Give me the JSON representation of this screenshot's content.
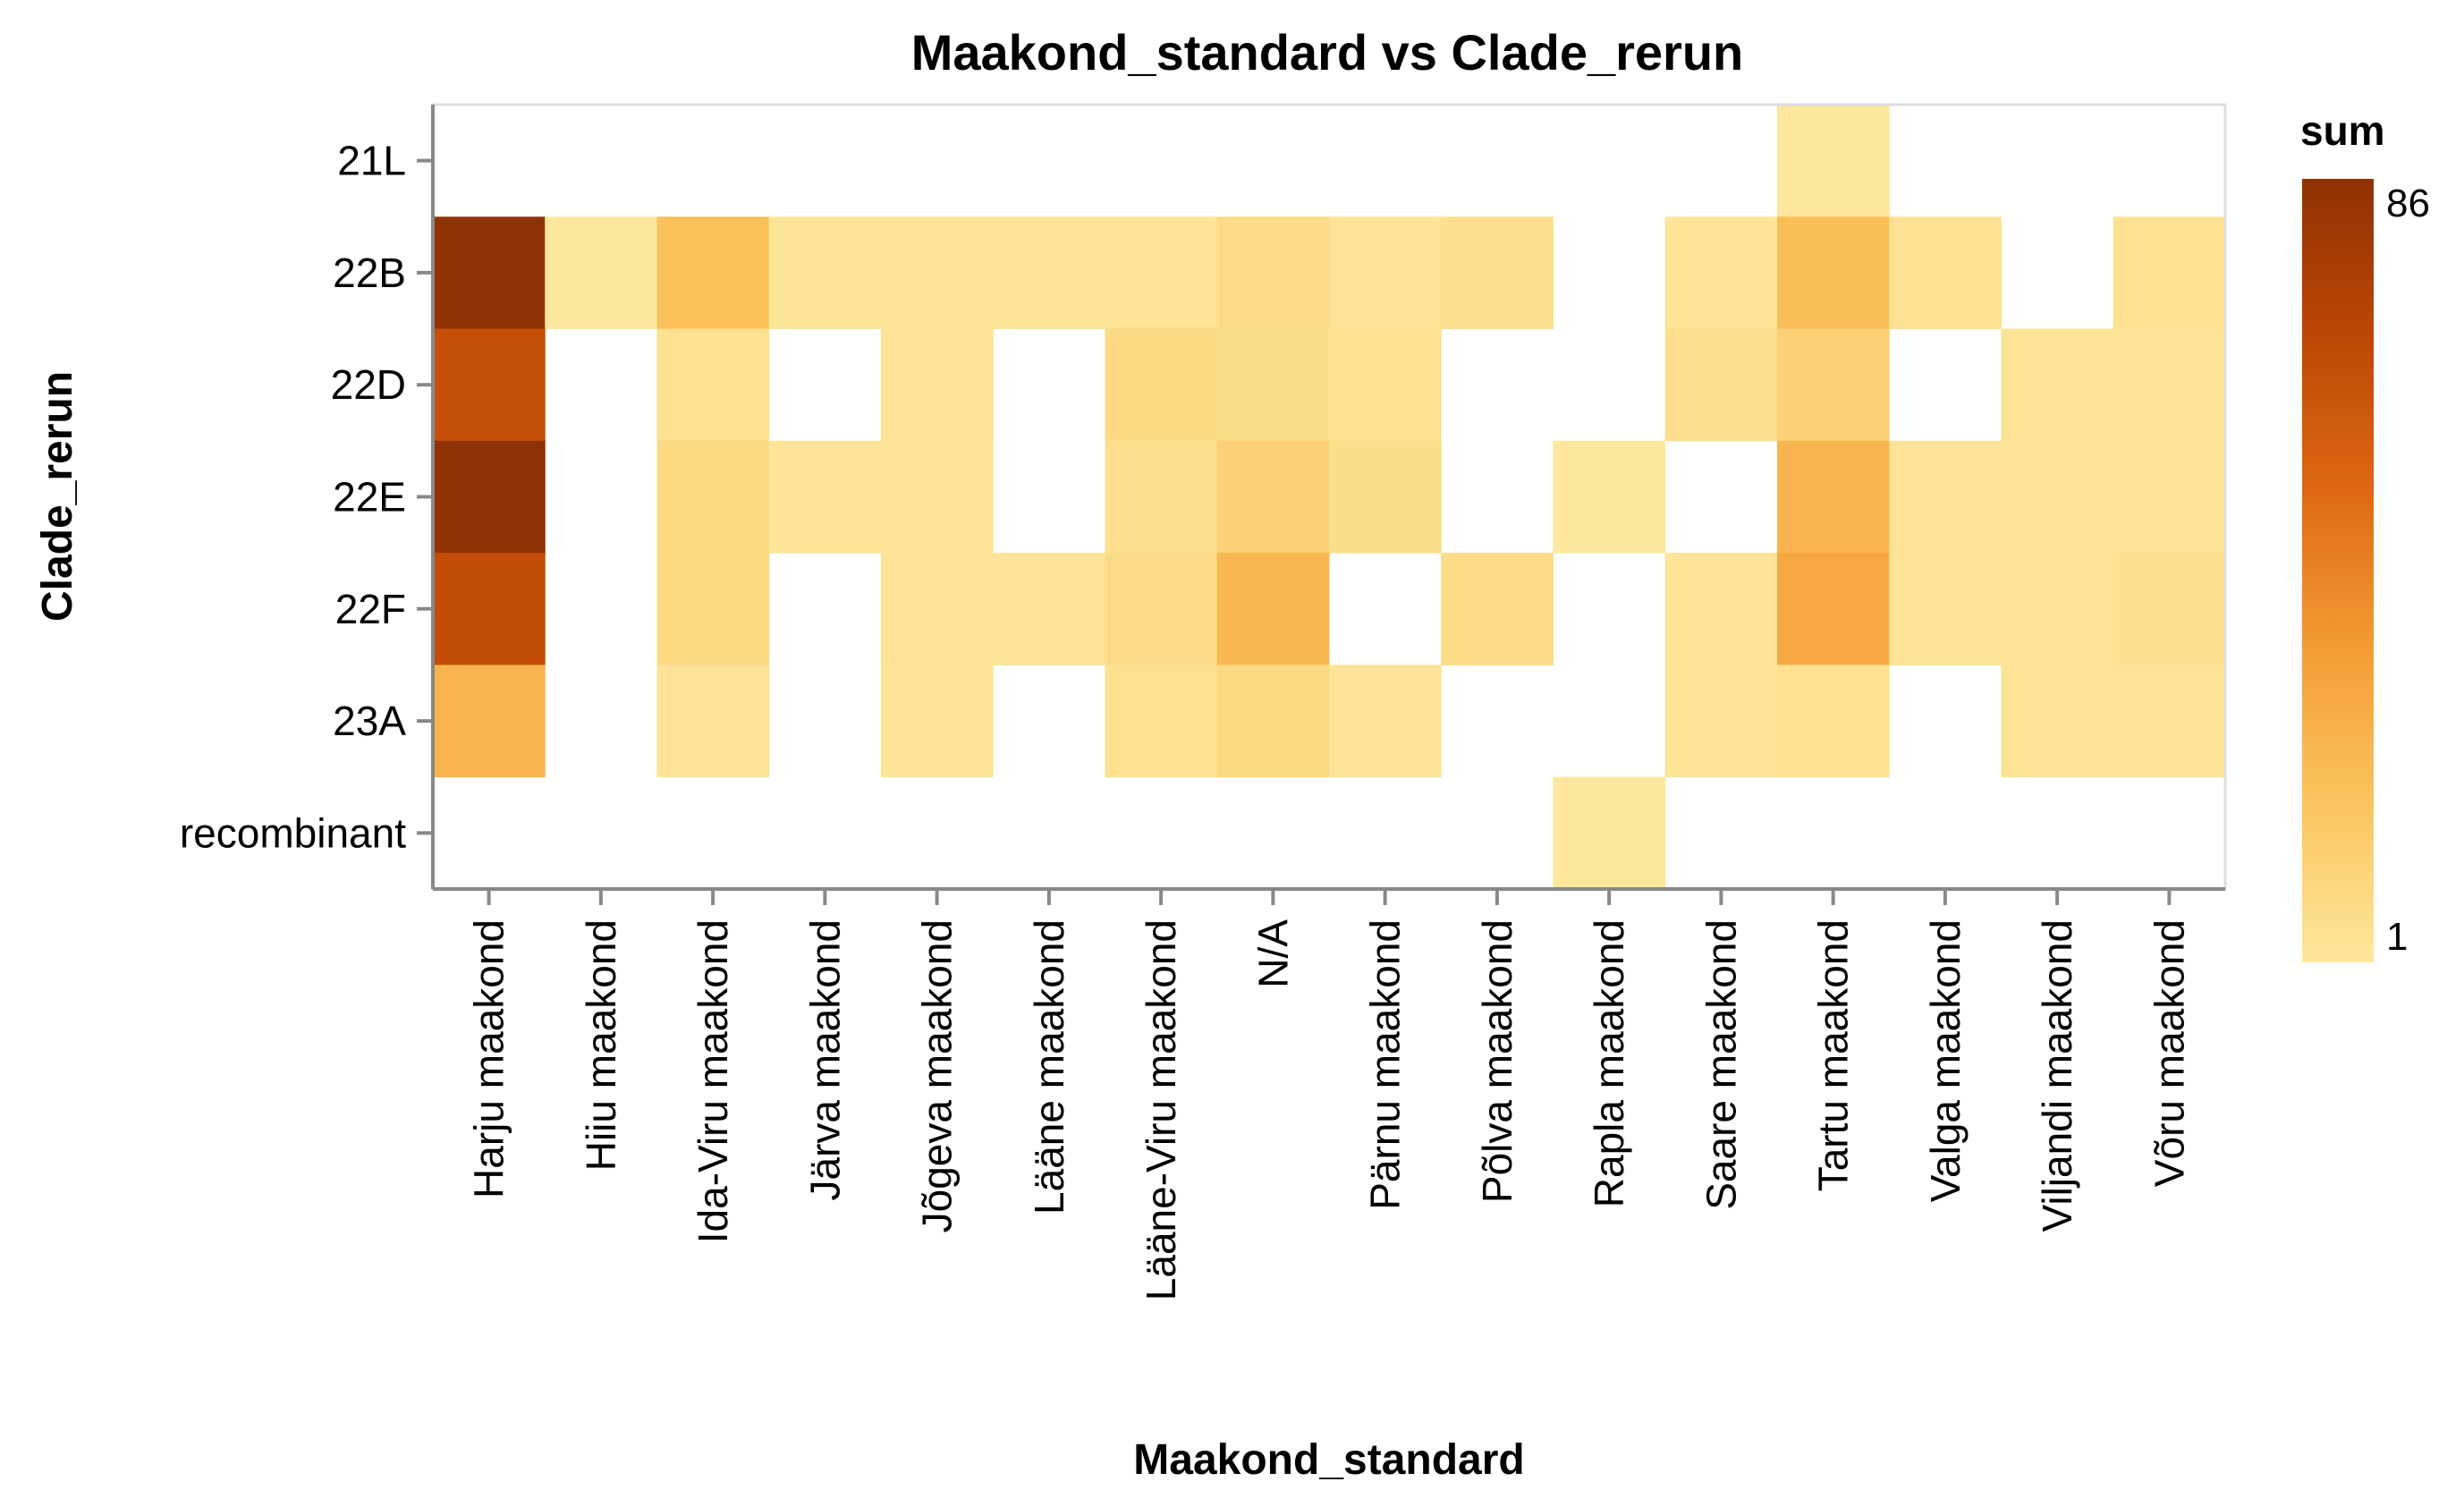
{
  "chart_data": {
    "type": "heatmap",
    "title": "Maakond_standard vs Clade_rerun",
    "xlabel": "Maakond_standard",
    "ylabel": "Clade_rerun",
    "x_categories": [
      "Harju maakond",
      "Hiiu maakond",
      "Ida-Viru maakond",
      "Järva maakond",
      "Jõgeva maakond",
      "Lääne maakond",
      "Lääne-Viru maakond",
      "N/A",
      "Pärnu maakond",
      "Põlva maakond",
      "Rapla maakond",
      "Saare maakond",
      "Tartu maakond",
      "Valga maakond",
      "Viljandi maakond",
      "Võru maakond"
    ],
    "y_categories": [
      "21L",
      "22B",
      "22D",
      "22E",
      "22F",
      "23A",
      "recombinant"
    ],
    "values": [
      [
        null,
        null,
        null,
        null,
        null,
        null,
        null,
        null,
        null,
        null,
        null,
        null,
        1,
        null,
        null,
        null
      ],
      [
        86,
        1,
        20,
        2,
        2,
        2,
        3,
        7,
        3,
        5,
        null,
        2,
        21,
        4,
        null,
        4
      ],
      [
        65,
        null,
        4,
        null,
        3,
        null,
        8,
        6,
        4,
        null,
        null,
        5,
        12,
        null,
        3,
        3
      ],
      [
        86,
        null,
        8,
        2,
        2,
        null,
        5,
        12,
        6,
        null,
        1,
        null,
        25,
        3,
        3,
        3
      ],
      [
        66,
        null,
        8,
        null,
        3,
        2,
        7,
        24,
        null,
        7,
        null,
        2,
        30,
        3,
        3,
        5
      ],
      [
        25,
        null,
        3,
        null,
        2,
        null,
        4,
        8,
        3,
        null,
        null,
        2,
        4,
        null,
        3,
        3
      ],
      [
        null,
        null,
        null,
        null,
        null,
        null,
        null,
        null,
        null,
        null,
        1,
        null,
        null,
        null,
        null,
        null
      ]
    ],
    "legend": {
      "title": "sum",
      "min": 1,
      "max": 86,
      "position": "right",
      "colors": [
        "#fde79c",
        "#fbc55f",
        "#f39c35",
        "#de6913",
        "#bd4605",
        "#8f3203"
      ]
    },
    "grid": false
  }
}
